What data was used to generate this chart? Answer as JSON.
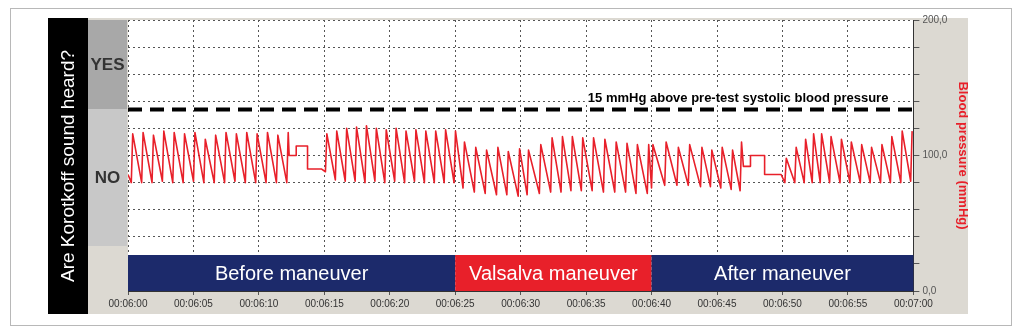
{
  "chart_data": {
    "type": "line",
    "ylabel": "Are Korotkoff sound heard?",
    "y2label": "Blood pressure (mmHg)",
    "annotations": [
      "YES",
      "NO"
    ],
    "x": [
      0.1,
      0.10007,
      0.1001,
      0.10029,
      0.10032,
      0.10051,
      0.10054,
      0.10073,
      0.10076,
      0.10095,
      0.10098,
      0.10117,
      0.1012,
      0.10139,
      0.10142,
      0.10161,
      0.10164,
      0.10183,
      0.10186,
      0.10205,
      0.10208,
      0.10227,
      0.1023,
      0.10249,
      0.10252,
      0.10271,
      0.10274,
      0.10293,
      0.10296,
      0.10315,
      0.10318,
      0.10337,
      0.1034,
      0.10342,
      0.10357,
      0.10357,
      0.10381,
      0.10381,
      0.10411,
      0.10419,
      0.10422,
      0.1044,
      0.10443,
      0.10461,
      0.10464,
      0.10482,
      0.10485,
      0.10503,
      0.10506,
      0.10524,
      0.10527,
      0.10545,
      0.10548,
      0.10566,
      0.10569,
      0.10587,
      0.1059,
      0.10608,
      0.10611,
      0.10629,
      0.10632,
      0.1065,
      0.10653,
      0.10671,
      0.10674,
      0.10692,
      0.10695,
      0.10711,
      0.10714,
      0.10735,
      0.10738,
      0.10758,
      0.10761,
      0.10782,
      0.10785,
      0.10804,
      0.10807,
      0.10828,
      0.10831,
      0.10847,
      0.1085,
      0.10873,
      0.10876,
      0.10897,
      0.109,
      0.10919,
      0.10922,
      0.1094,
      0.10943,
      0.10962,
      0.10965,
      0.10985,
      0.10988,
      0.11009,
      0.11012,
      0.11033,
      0.11036,
      0.11056,
      0.11059,
      0.11078,
      0.11081,
      0.11102,
      0.11105,
      0.11111,
      0.11114,
      0.11139,
      0.11142,
      0.11165,
      0.11168,
      0.11189,
      0.11192,
      0.11215,
      0.11218,
      0.11236,
      0.11239,
      0.11258,
      0.11261,
      0.1128,
      0.11283,
      0.11299,
      0.11302,
      0.11306,
      0.11321,
      0.11321,
      0.11351,
      0.11351,
      0.11386,
      0.11394,
      0.11397,
      0.11415,
      0.11418,
      0.11435,
      0.11438,
      0.11452,
      0.11455,
      0.11469,
      0.11472,
      0.11489,
      0.11492,
      0.11511,
      0.11514,
      0.11532,
      0.11535,
      0.11554,
      0.11557,
      0.11575,
      0.11578,
      0.11597,
      0.116,
      0.11618,
      0.11621,
      0.1164,
      0.11643,
      0.11661,
      0.11664
    ],
    "series": [
      {
        "axis": "y2",
        "color": "#e8202a",
        "values": [
          86,
          80,
          116,
          80,
          117,
          80,
          115,
          81,
          118,
          80,
          117,
          80,
          116,
          81,
          117,
          80,
          112,
          80,
          115,
          80,
          117,
          81,
          116,
          80,
          117,
          80,
          116,
          80,
          117,
          80,
          115,
          80,
          117,
          100,
          100,
          107,
          107,
          90,
          90,
          88,
          116,
          82,
          118,
          81,
          120,
          81,
          121,
          80,
          122,
          81,
          120,
          80,
          119,
          81,
          120,
          80,
          118,
          81,
          119,
          80,
          118,
          80,
          118,
          80,
          119,
          80,
          118,
          76,
          110,
          73,
          106,
          72,
          104,
          71,
          106,
          71,
          103,
          70,
          105,
          71,
          104,
          72,
          108,
          73,
          113,
          73,
          114,
          74,
          114,
          74,
          113,
          74,
          113,
          73,
          112,
          73,
          110,
          73,
          109,
          72,
          108,
          72,
          108,
          76,
          108,
          78,
          110,
          78,
          106,
          78,
          108,
          77,
          106,
          77,
          104,
          76,
          106,
          75,
          104,
          74,
          110,
          92,
          92,
          100,
          100,
          86,
          86,
          80,
          98,
          80,
          106,
          80,
          112,
          80,
          116,
          80,
          116,
          80,
          114,
          80,
          112,
          80,
          110,
          80,
          108,
          80,
          106,
          80,
          108,
          80,
          114,
          80,
          118,
          81,
          118
        ]
      }
    ],
    "xlim": [
      0.1,
      0.116667
    ],
    "xticks": [
      {
        "value": 0.1,
        "label": "00:06:00"
      },
      {
        "value": 0.101389,
        "label": "00:06:05"
      },
      {
        "value": 0.102778,
        "label": "00:06:10"
      },
      {
        "value": 0.104167,
        "label": "00:06:15"
      },
      {
        "value": 0.105556,
        "label": "00:06:20"
      },
      {
        "value": 0.106944,
        "label": "00:06:25"
      },
      {
        "value": 0.108333,
        "label": "00:06:30"
      },
      {
        "value": 0.109722,
        "label": "00:06:35"
      },
      {
        "value": 0.111111,
        "label": "00:06:40"
      },
      {
        "value": 0.1125,
        "label": "00:06:45"
      },
      {
        "value": 0.113889,
        "label": "00:06:50"
      },
      {
        "value": 0.115278,
        "label": "00:06:55"
      },
      {
        "value": 0.116667,
        "label": "00:07:00"
      }
    ],
    "y2lim": [
      0,
      200
    ],
    "y2ticks": [
      {
        "value": 0,
        "label": "0,0"
      },
      {
        "value": 20,
        "label": null
      },
      {
        "value": 40,
        "label": null
      },
      {
        "value": 60,
        "label": null
      },
      {
        "value": 80,
        "label": null
      },
      {
        "value": 100,
        "label": "100,0"
      },
      {
        "value": 120,
        "label": null
      },
      {
        "value": 140,
        "label": null
      },
      {
        "value": 160,
        "label": null
      },
      {
        "value": 180,
        "label": null
      },
      {
        "value": 200,
        "label": "200,0"
      }
    ],
    "ref_lines": [
      {
        "axis": "y2",
        "value": 134,
        "label": "15 mmHg above pre-test systolic blood pressure",
        "color": "#000000",
        "line_style": "dashed"
      }
    ],
    "bands": [
      {
        "axis": "x",
        "from": 0.1,
        "to": 0.106944,
        "label": "Before maneuver",
        "color": "#1c2a6b"
      },
      {
        "axis": "x",
        "from": 0.106944,
        "to": 0.111111,
        "label": "Valsalva maneuver",
        "color": "#e8202a"
      },
      {
        "axis": "x",
        "from": 0.111111,
        "to": 0.116667,
        "label": "After maneuver",
        "color": "#1c2a6b"
      }
    ],
    "grid": true,
    "legend": false,
    "marker": "none",
    "line_style": "solid"
  }
}
